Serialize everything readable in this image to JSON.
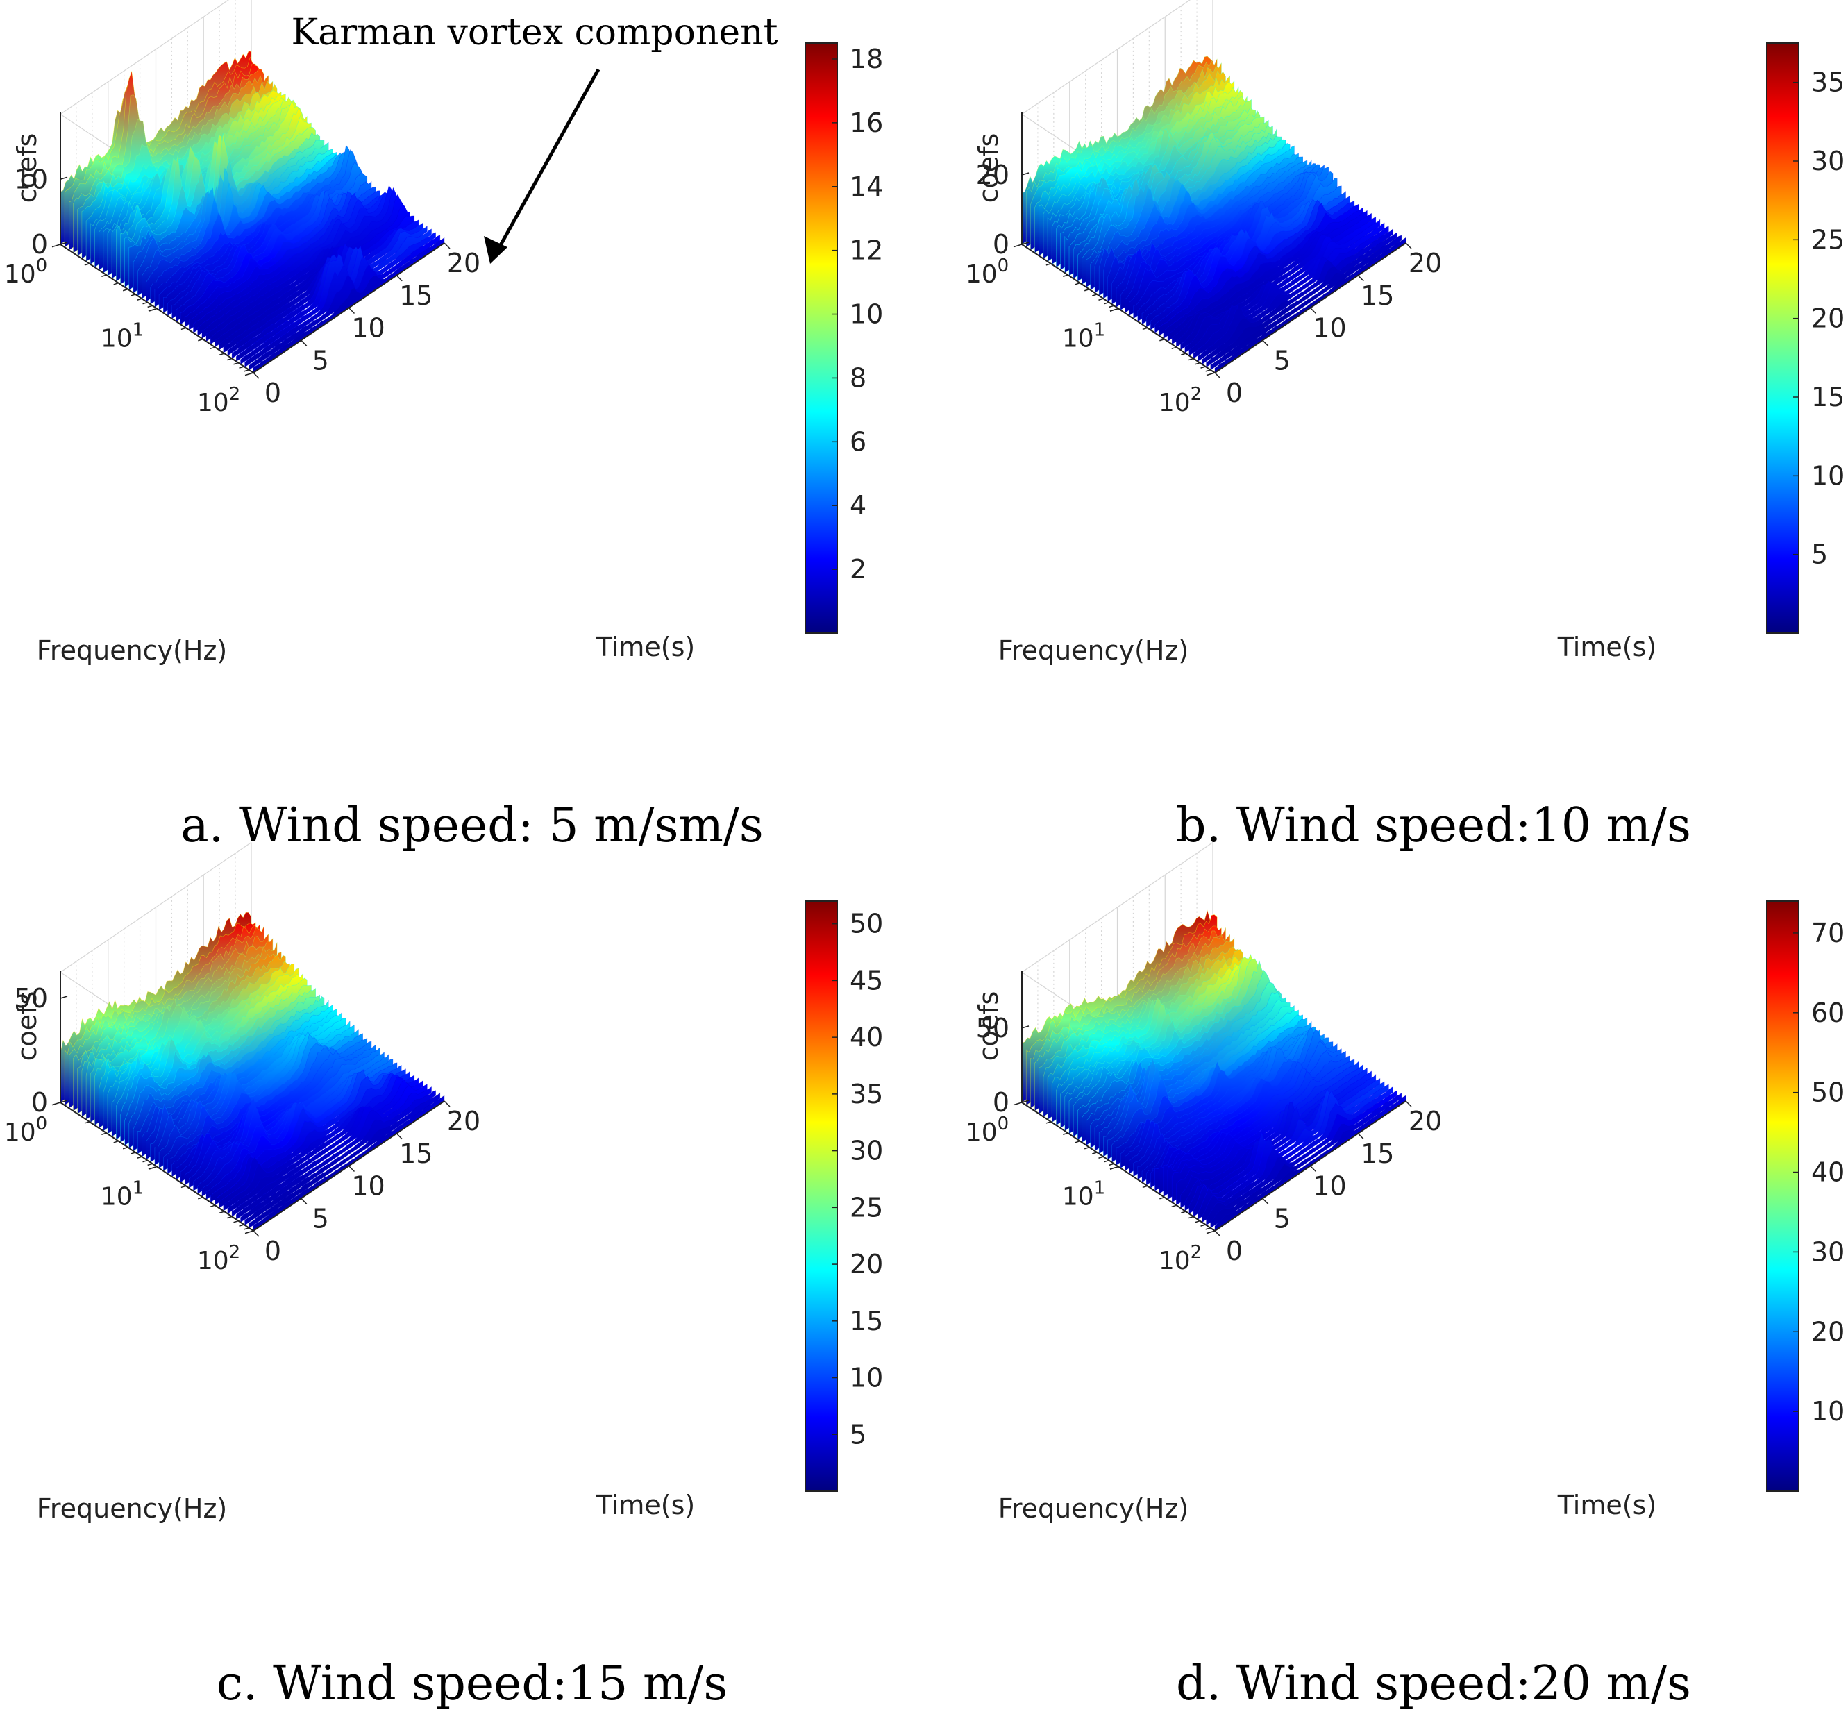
{
  "figure": {
    "annotation": "Karman vortex component",
    "x_axis_label": "Time(s)",
    "y_axis_label": "Frequency(Hz)",
    "z_axis_label": "coefs",
    "colormap": [
      "#00007f",
      "#0000ff",
      "#007fff",
      "#00ffff",
      "#7fff7f",
      "#ffff00",
      "#ff7f00",
      "#ff0000",
      "#7f0000"
    ]
  },
  "chart_data": [
    {
      "type": "surface",
      "caption": "a. Wind speed: 5 m/sm/s",
      "wind_speed_ms": 5,
      "xlabel": "Time(s)",
      "ylabel": "Frequency(Hz)",
      "zlabel": "coefs",
      "x_ticks": [
        "0",
        "5",
        "10",
        "15",
        "20"
      ],
      "y_ticks": [
        {
          "base": "10",
          "exp": "0"
        },
        {
          "base": "10",
          "exp": "1"
        },
        {
          "base": "10",
          "exp": "2"
        }
      ],
      "z_ticks": [
        "0",
        "10"
      ],
      "z_tick_values": [
        0,
        10
      ],
      "z_max": 16,
      "colorbar_ticks": [
        "2",
        "4",
        "6",
        "8",
        "10",
        "12",
        "14",
        "16",
        "18"
      ],
      "colorbar_range": [
        0,
        18.5
      ],
      "has_annotation": true
    },
    {
      "type": "surface",
      "caption": "b. Wind speed:10 m/s",
      "wind_speed_ms": 10,
      "xlabel": "Time(s)",
      "ylabel": "Frequency(Hz)",
      "zlabel": "coefs",
      "x_ticks": [
        "0",
        "5",
        "10",
        "15",
        "20"
      ],
      "y_ticks": [
        {
          "base": "10",
          "exp": "0"
        },
        {
          "base": "10",
          "exp": "1"
        },
        {
          "base": "10",
          "exp": "2"
        }
      ],
      "z_ticks": [
        "0",
        "20"
      ],
      "z_tick_values": [
        0,
        20
      ],
      "z_max": 30,
      "colorbar_ticks": [
        "5",
        "10",
        "15",
        "20",
        "25",
        "30",
        "35"
      ],
      "colorbar_range": [
        0,
        37.5
      ],
      "has_annotation": false
    },
    {
      "type": "surface",
      "caption": "c. Wind speed:15 m/s",
      "wind_speed_ms": 15,
      "xlabel": "Time(s)",
      "ylabel": "Frequency(Hz)",
      "zlabel": "coefs",
      "x_ticks": [
        "0",
        "5",
        "10",
        "15",
        "20"
      ],
      "y_ticks": [
        {
          "base": "10",
          "exp": "0"
        },
        {
          "base": "10",
          "exp": "1"
        },
        {
          "base": "10",
          "exp": "2"
        }
      ],
      "z_ticks": [
        "0",
        "50"
      ],
      "z_tick_values": [
        0,
        50
      ],
      "z_max": 50,
      "colorbar_ticks": [
        "5",
        "10",
        "15",
        "20",
        "25",
        "30",
        "35",
        "40",
        "45",
        "50"
      ],
      "colorbar_range": [
        0,
        52
      ],
      "has_annotation": false
    },
    {
      "type": "surface",
      "caption": "d. Wind speed:20 m/s",
      "wind_speed_ms": 20,
      "xlabel": "Time(s)",
      "ylabel": "Frequency(Hz)",
      "zlabel": "coefs",
      "x_ticks": [
        "0",
        "5",
        "10",
        "15",
        "20"
      ],
      "y_ticks": [
        {
          "base": "10",
          "exp": "0"
        },
        {
          "base": "10",
          "exp": "1"
        },
        {
          "base": "10",
          "exp": "2"
        }
      ],
      "z_ticks": [
        "0",
        "50"
      ],
      "z_tick_values": [
        0,
        50
      ],
      "z_max": 70,
      "colorbar_ticks": [
        "10",
        "20",
        "30",
        "40",
        "50",
        "60",
        "70"
      ],
      "colorbar_range": [
        0,
        74
      ],
      "has_annotation": false
    }
  ]
}
